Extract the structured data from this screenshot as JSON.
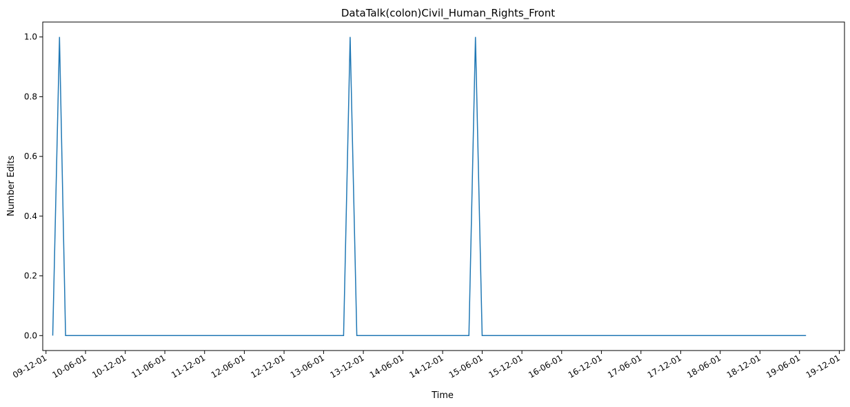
{
  "chart_data": {
    "type": "line",
    "title": "DataTalk(colon)Civil_Human_Rights_Front",
    "xlabel": "Time",
    "ylabel": "Number Edits",
    "x_tick_labels": [
      "09-12-01",
      "10-06-01",
      "10-12-01",
      "11-06-01",
      "11-12-01",
      "12-06-01",
      "12-12-01",
      "13-06-01",
      "13-12-01",
      "14-06-01",
      "14-12-01",
      "15-06-01",
      "15-12-01",
      "16-06-01",
      "16-12-01",
      "17-06-01",
      "17-12-01",
      "18-06-01",
      "18-12-01",
      "19-06-01",
      "19-12-01"
    ],
    "y_tick_labels": [
      "0.0",
      "0.2",
      "0.4",
      "0.6",
      "0.8",
      "1.0"
    ],
    "ylim": [
      -0.05,
      1.05
    ],
    "grid": false,
    "color": "#1f77b4",
    "series": [
      {
        "x": [
          "2010-01-01",
          "2010-02-01",
          "2010-03-01",
          "2013-09-01",
          "2013-10-01",
          "2013-11-01",
          "2015-04-01",
          "2015-05-01",
          "2015-06-01",
          "2019-07-01"
        ],
        "values": [
          0,
          1,
          0,
          0,
          1,
          0,
          0,
          1,
          0,
          0
        ]
      }
    ]
  }
}
